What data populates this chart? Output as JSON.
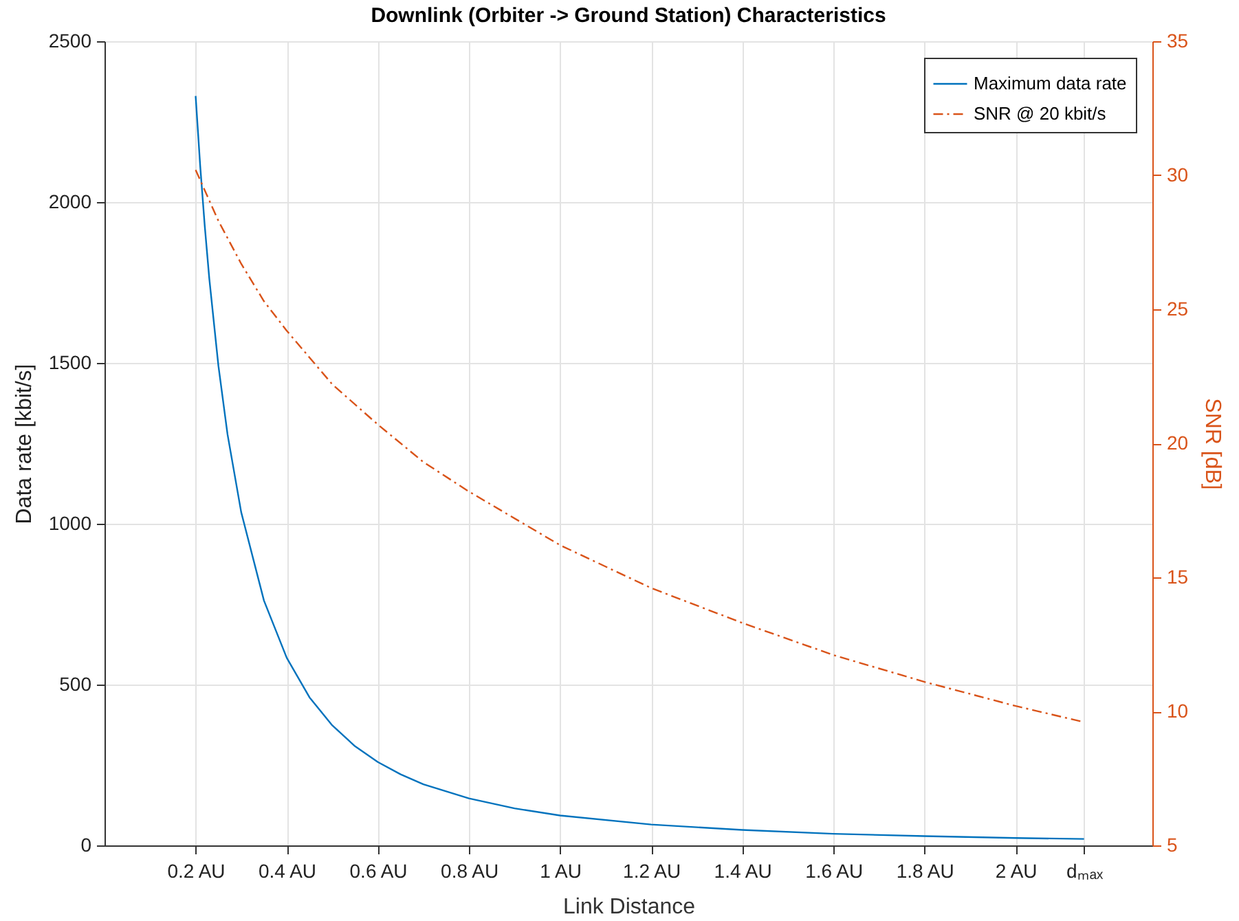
{
  "chart_data": {
    "type": "line",
    "title": "Downlink (Orbiter -> Ground Station) Characteristics",
    "xlabel": "Link Distance",
    "ylabel": "Data rate [kbit/s]",
    "y2label": "SNR [dB]",
    "xlim": [
      0,
      2.3
    ],
    "xticks": [
      {
        "value": 0.2,
        "label": "0.2 AU"
      },
      {
        "value": 0.4,
        "label": "0.4 AU"
      },
      {
        "value": 0.6,
        "label": "0.6 AU"
      },
      {
        "value": 0.8,
        "label": "0.8 AU"
      },
      {
        "value": 1,
        "label": "1 AU"
      },
      {
        "value": 1.2,
        "label": "1.2 AU"
      },
      {
        "value": 1.4,
        "label": "1.4 AU"
      },
      {
        "value": 1.6,
        "label": "1.6 AU"
      },
      {
        "value": 1.8,
        "label": "1.8 AU"
      },
      {
        "value": 2,
        "label": "2 AU"
      },
      {
        "value": 2.15,
        "label": "dₘₐₓ"
      }
    ],
    "ylim": [
      0,
      2500
    ],
    "yticks": [
      0,
      500,
      1000,
      1500,
      2000,
      2500
    ],
    "y2lim": [
      5,
      35
    ],
    "y2ticks": [
      5,
      10,
      15,
      20,
      25,
      30,
      35
    ],
    "grid": true,
    "legend": "top right",
    "series": [
      {
        "name": "Maximum data rate",
        "color": "#0072bd",
        "line_style": "solid",
        "x": [
          0.2,
          0.21,
          0.22,
          0.23,
          0.25,
          0.27,
          0.3,
          0.35,
          0.4,
          0.45,
          0.5,
          0.55,
          0.6,
          0.65,
          0.7,
          0.8,
          0.9,
          1,
          1.2,
          1.4,
          1.6,
          1.8,
          2,
          2.15
        ],
        "values": [
          2330,
          2113,
          1926,
          1762,
          1491,
          1278,
          1036,
          761,
          583,
          460,
          373,
          308,
          259,
          221,
          190,
          146,
          115,
          93,
          65,
          48,
          36,
          29,
          23,
          20
        ]
      },
      {
        "name": "SNR @ 20 kbit/s",
        "color": "#d95319",
        "line_style": "dashed",
        "axis": "y2",
        "x": [
          0.2,
          0.25,
          0.3,
          0.35,
          0.4,
          0.45,
          0.5,
          0.6,
          0.7,
          0.8,
          1,
          1.2,
          1.4,
          1.6,
          1.8,
          2,
          2.15
        ],
        "values": [
          30.2,
          28.3,
          26.7,
          25.3,
          24.2,
          23.2,
          22.2,
          20.7,
          19.3,
          18.2,
          16.2,
          14.6,
          13.3,
          12.1,
          11.1,
          10.2,
          9.6
        ]
      }
    ]
  }
}
